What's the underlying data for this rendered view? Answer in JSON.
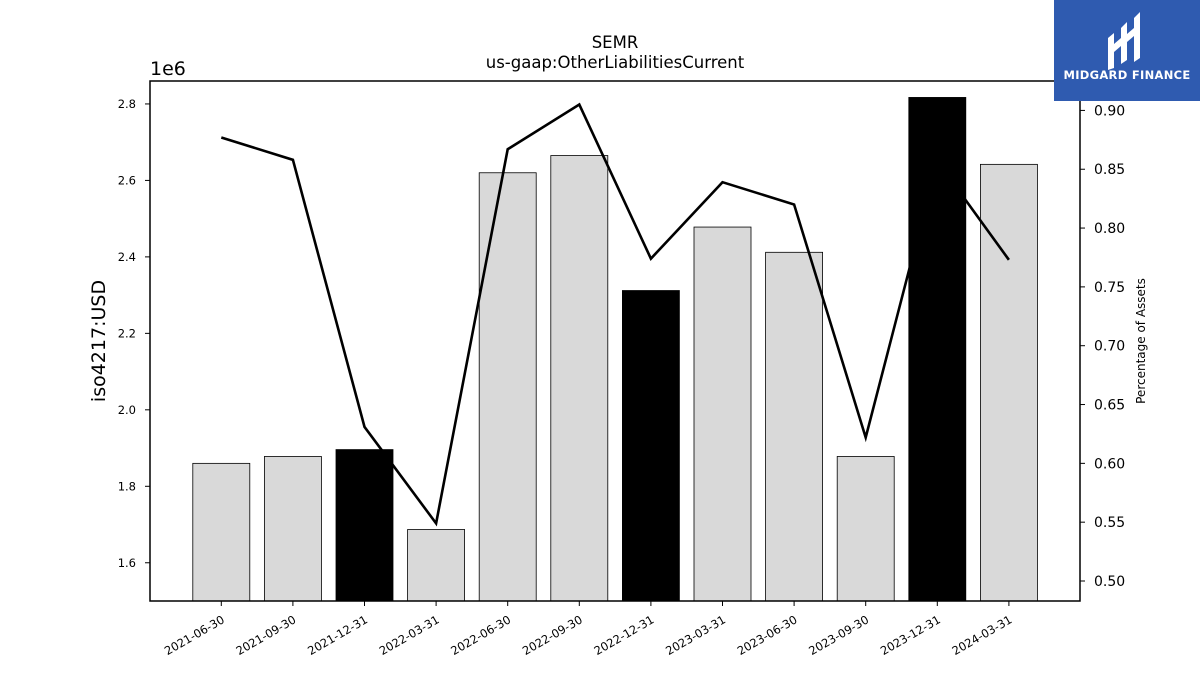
{
  "chart_data": {
    "type": "bar",
    "title": "SEMR",
    "subtitle": "us-gaap:OtherLiabilitiesCurrent",
    "ylabel": "iso4217:USD",
    "y2label": "Percentage of Assets",
    "y_offset_label": "1e6",
    "categories": [
      "2021-06-30",
      "2021-09-30",
      "2021-12-31",
      "2022-03-31",
      "2022-06-30",
      "2022-09-30",
      "2022-12-31",
      "2023-03-31",
      "2023-06-30",
      "2023-09-30",
      "2023-12-31",
      "2024-03-31"
    ],
    "values": [
      1860000,
      1878000,
      1896000,
      1687000,
      2620000,
      2665000,
      2312000,
      2478000,
      2412000,
      1878000,
      2817000,
      2642000
    ],
    "highlighted": [
      false,
      false,
      true,
      false,
      false,
      false,
      true,
      false,
      false,
      false,
      true,
      false
    ],
    "ylim": [
      1500000,
      2860000
    ],
    "yticks": [
      1600000,
      1800000,
      2000000,
      2200000,
      2400000,
      2600000,
      2800000
    ],
    "ytick_labels": [
      "1.6",
      "1.8",
      "2.0",
      "2.2",
      "2.4",
      "2.6",
      "2.8"
    ],
    "series": [
      {
        "name": "",
        "axis": "right",
        "values": [
          0.877,
          0.858,
          0.631,
          0.549,
          0.867,
          0.905,
          0.774,
          0.839,
          0.82,
          0.622,
          0.857,
          0.773
        ]
      }
    ],
    "y2lim": [
      0.483,
      0.925
    ],
    "y2ticks": [
      0.5,
      0.55,
      0.6,
      0.65,
      0.7,
      0.75,
      0.8,
      0.85,
      0.9
    ],
    "y2tick_labels": [
      "0.50",
      "0.55",
      "0.60",
      "0.65",
      "0.70",
      "0.75",
      "0.80",
      "0.85",
      "0.90"
    ],
    "colors": {
      "bar": "#d9d9d9",
      "bar_highlight": "#000000",
      "line": "#000000"
    }
  },
  "logo": {
    "text": "MIDGARD FINANCE"
  }
}
